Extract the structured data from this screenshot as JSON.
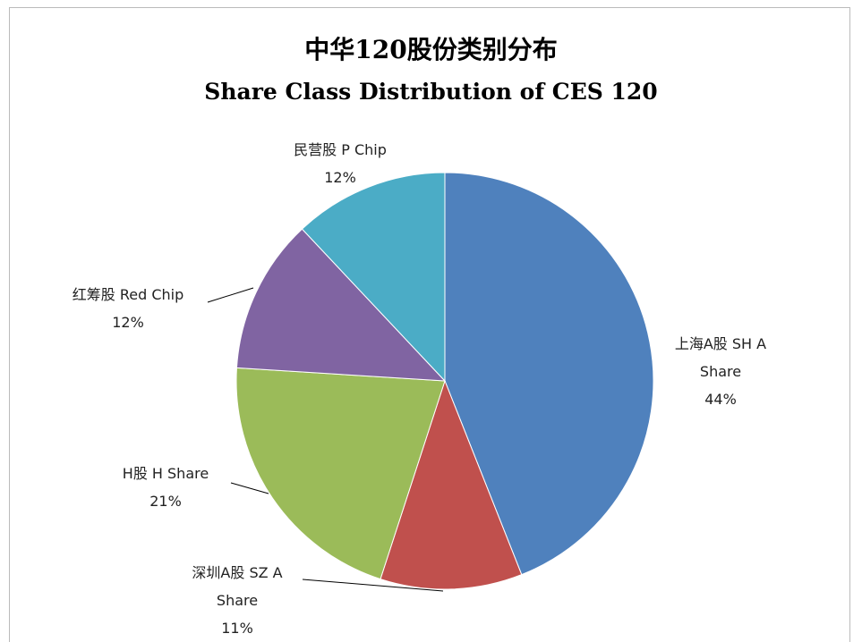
{
  "chart_data": {
    "type": "pie",
    "title": "中华120股份类别分布",
    "subtitle": "Share Class Distribution of CES 120",
    "categories": [
      "上海A股 SH A Share",
      "深圳A股 SZ A Share",
      "H股 H Share",
      "红筹股 Red Chip",
      "民营股 P Chip"
    ],
    "values": [
      44,
      11,
      21,
      12,
      12
    ],
    "value_labels": [
      "44%",
      "11%",
      "21%",
      "12%",
      "12%"
    ],
    "colors": [
      "#4f81bd",
      "#c0504d",
      "#9bbb59",
      "#8064a2",
      "#4bacc6"
    ]
  }
}
